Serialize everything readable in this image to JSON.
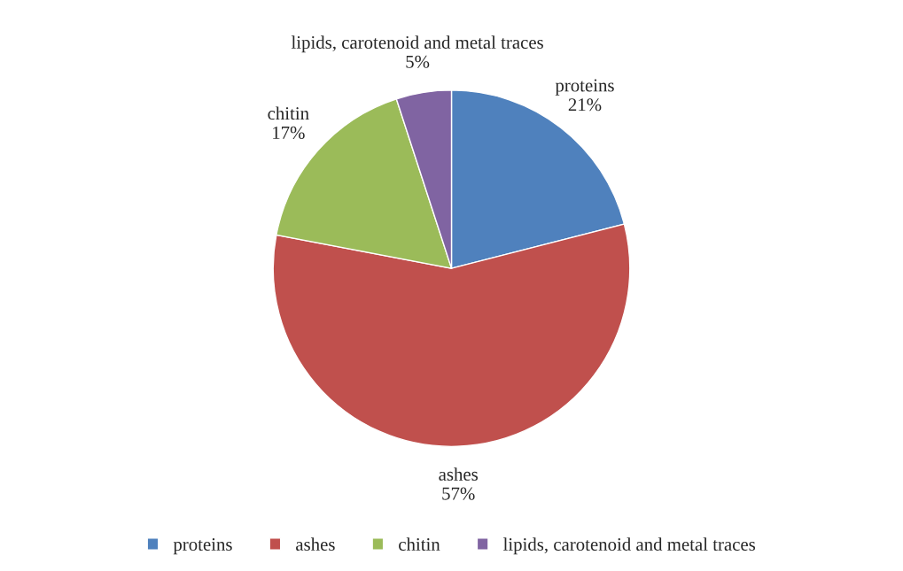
{
  "chart_data": {
    "type": "pie",
    "categories": [
      "proteins",
      "ashes",
      "chitin",
      "lipids, carotenoid and metal traces"
    ],
    "values": [
      21,
      57,
      17,
      5
    ],
    "value_labels": [
      "21%",
      "57%",
      "17%",
      "5%"
    ],
    "colors": [
      "#4f81bd",
      "#c0504d",
      "#9bbb59",
      "#8064a2"
    ],
    "legend": "bottom"
  }
}
